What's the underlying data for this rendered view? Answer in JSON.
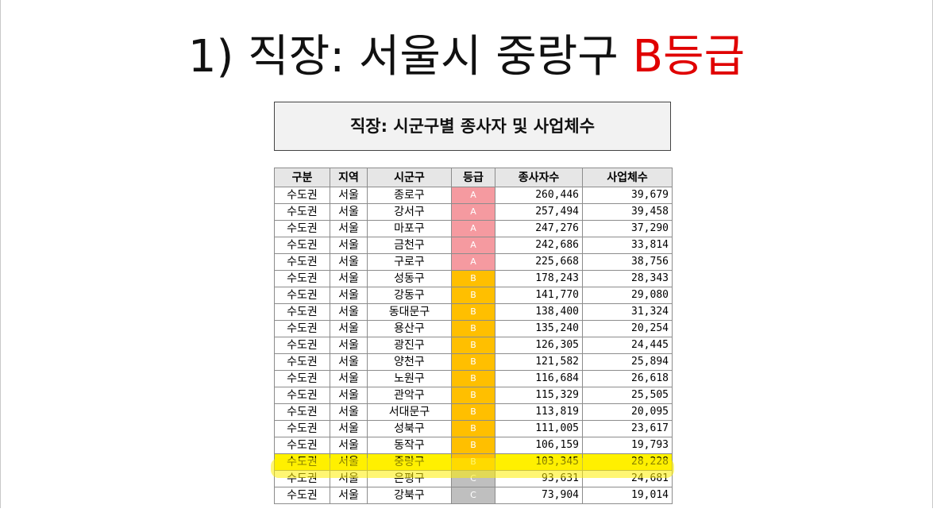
{
  "slide": {
    "title_prefix": "1) 직장: 서울시 중랑구 ",
    "title_accent": "B등급",
    "accent_color": "#e00000"
  },
  "sheet": {
    "title": "직장: 시군구별 종사자 및 사업체수",
    "headers": [
      "구분",
      "지역",
      "시군구",
      "등급",
      "종사자수",
      "사업체수"
    ],
    "grade_colors": {
      "A": "#f59aa0",
      "B": "#ffbf00",
      "C": "#bfbfbf"
    },
    "highlight_color": "#fff200",
    "rows": [
      {
        "region_type": "수도권",
        "area": "서울",
        "district": "종로구",
        "grade": "A",
        "workers": "260,446",
        "businesses": "39,679"
      },
      {
        "region_type": "수도권",
        "area": "서울",
        "district": "강서구",
        "grade": "A",
        "workers": "257,494",
        "businesses": "39,458"
      },
      {
        "region_type": "수도권",
        "area": "서울",
        "district": "마포구",
        "grade": "A",
        "workers": "247,276",
        "businesses": "37,290"
      },
      {
        "region_type": "수도권",
        "area": "서울",
        "district": "금천구",
        "grade": "A",
        "workers": "242,686",
        "businesses": "33,814"
      },
      {
        "region_type": "수도권",
        "area": "서울",
        "district": "구로구",
        "grade": "A",
        "workers": "225,668",
        "businesses": "38,756"
      },
      {
        "region_type": "수도권",
        "area": "서울",
        "district": "성동구",
        "grade": "B",
        "workers": "178,243",
        "businesses": "28,343"
      },
      {
        "region_type": "수도권",
        "area": "서울",
        "district": "강동구",
        "grade": "B",
        "workers": "141,770",
        "businesses": "29,080"
      },
      {
        "region_type": "수도권",
        "area": "서울",
        "district": "동대문구",
        "grade": "B",
        "workers": "138,400",
        "businesses": "31,324"
      },
      {
        "region_type": "수도권",
        "area": "서울",
        "district": "용산구",
        "grade": "B",
        "workers": "135,240",
        "businesses": "20,254"
      },
      {
        "region_type": "수도권",
        "area": "서울",
        "district": "광진구",
        "grade": "B",
        "workers": "126,305",
        "businesses": "24,445"
      },
      {
        "region_type": "수도권",
        "area": "서울",
        "district": "양천구",
        "grade": "B",
        "workers": "121,582",
        "businesses": "25,894"
      },
      {
        "region_type": "수도권",
        "area": "서울",
        "district": "노원구",
        "grade": "B",
        "workers": "116,684",
        "businesses": "26,618"
      },
      {
        "region_type": "수도권",
        "area": "서울",
        "district": "관악구",
        "grade": "B",
        "workers": "115,329",
        "businesses": "25,505"
      },
      {
        "region_type": "수도권",
        "area": "서울",
        "district": "서대문구",
        "grade": "B",
        "workers": "113,819",
        "businesses": "20,095"
      },
      {
        "region_type": "수도권",
        "area": "서울",
        "district": "성북구",
        "grade": "B",
        "workers": "111,005",
        "businesses": "23,617"
      },
      {
        "region_type": "수도권",
        "area": "서울",
        "district": "동작구",
        "grade": "B",
        "workers": "106,159",
        "businesses": "19,793"
      },
      {
        "region_type": "수도권",
        "area": "서울",
        "district": "중랑구",
        "grade": "B",
        "workers": "103,345",
        "businesses": "28,228",
        "highlighted": true
      },
      {
        "region_type": "수도권",
        "area": "서울",
        "district": "은평구",
        "grade": "C",
        "workers": "93,631",
        "businesses": "24,681"
      },
      {
        "region_type": "수도권",
        "area": "서울",
        "district": "강북구",
        "grade": "C",
        "workers": "73,904",
        "businesses": "19,014"
      }
    ]
  }
}
